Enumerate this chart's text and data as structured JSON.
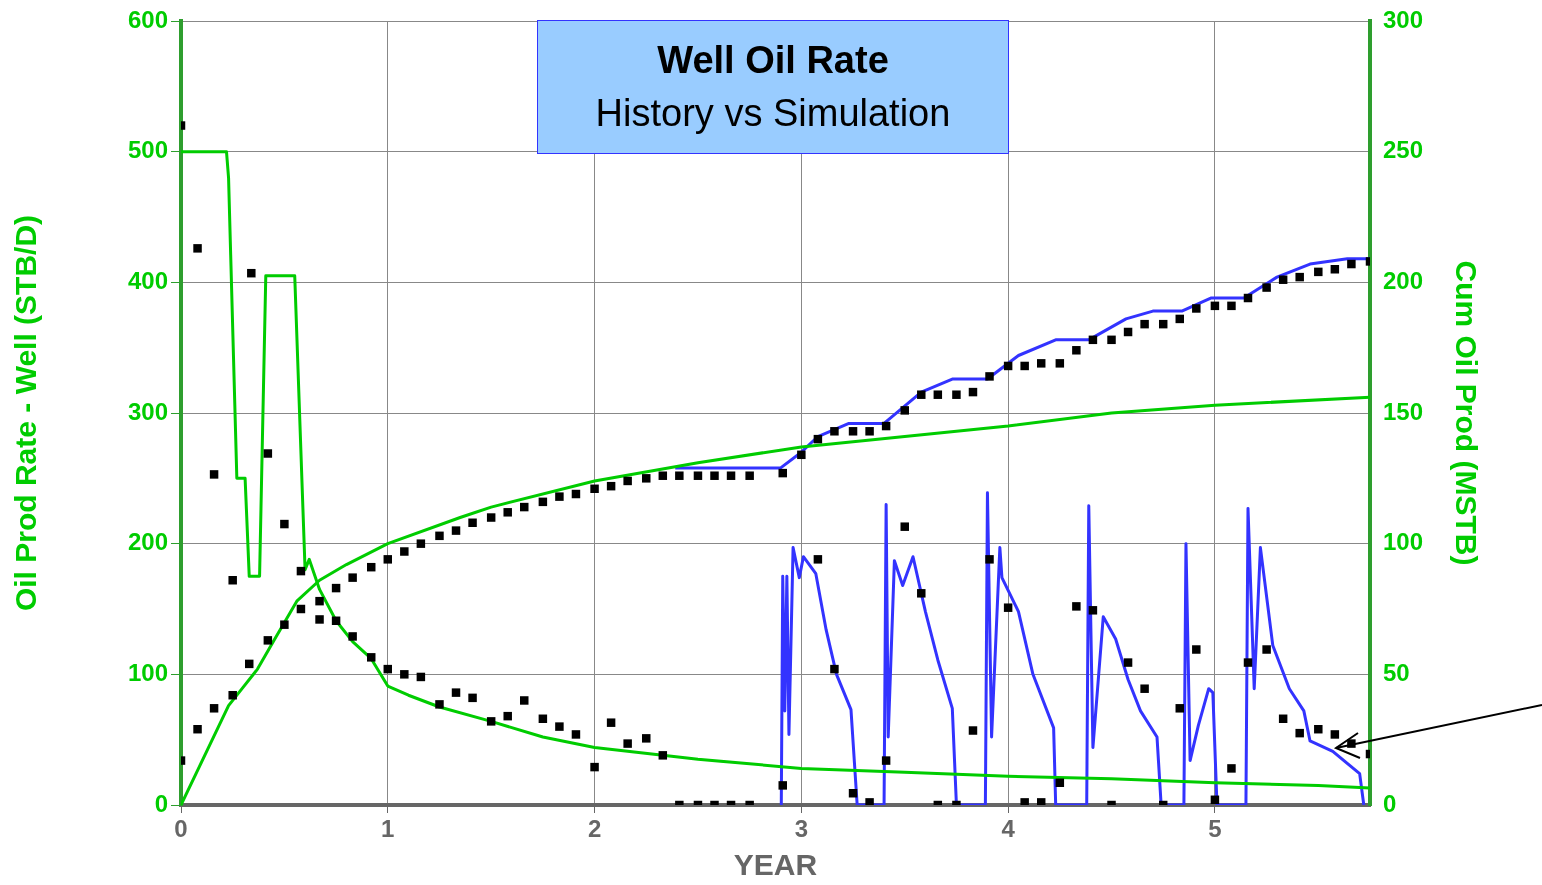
{
  "chart_data": {
    "type": "line",
    "title": "Well Oil Rate",
    "subtitle": "History vs Simulation",
    "xlabel": "YEAR",
    "ylabel": "Oil Prod Rate - Well (STB/D)",
    "y2label": "Cum Oil Prod (MSTB)",
    "xlim": [
      0,
      5.75
    ],
    "xticks": [
      0,
      1,
      2,
      3,
      4,
      5
    ],
    "ylim": [
      0,
      600
    ],
    "yticks": [
      0,
      100,
      200,
      300,
      400,
      500,
      600
    ],
    "y2lim": [
      0,
      300
    ],
    "y2ticks": [
      0,
      50,
      100,
      150,
      200,
      250,
      300
    ],
    "grid": true,
    "legend": false,
    "series": [
      {
        "type": "line",
        "color": "#00cc00",
        "marker": "none",
        "x": [
          0,
          0.22,
          0.23,
          0.27,
          0.31,
          0.33,
          0.38,
          0.41,
          0.55,
          0.6,
          0.62,
          0.67,
          0.75,
          0.83,
          0.92,
          1.0,
          1.1,
          1.25,
          1.5,
          1.75,
          2.0,
          2.33,
          2.5,
          3.0,
          3.5,
          4.0,
          4.5,
          5.0,
          5.5,
          5.75
        ],
        "values": [
          500,
          500,
          480,
          250,
          250,
          175,
          175,
          405,
          405,
          180,
          188,
          165,
          141,
          125,
          112,
          91,
          84,
          75,
          64,
          52,
          44,
          38,
          35,
          28,
          25,
          22,
          20,
          17,
          15,
          13
        ]
      },
      {
        "type": "line",
        "axis": "y2",
        "color": "#00cc00",
        "marker": "none",
        "x": [
          0,
          0.23,
          0.3,
          0.37,
          0.45,
          0.56,
          0.67,
          0.8,
          1.0,
          1.35,
          1.5,
          2.0,
          2.5,
          3.0,
          3.5,
          4.0,
          4.5,
          5.0,
          5.75
        ],
        "values": [
          0,
          38,
          45,
          52,
          63,
          78,
          86,
          92,
          100,
          110,
          114,
          124,
          131,
          137,
          141,
          145,
          150,
          153,
          156
        ]
      },
      {
        "type": "line",
        "axis": "y2",
        "color": "#3333ff",
        "marker": "none",
        "x": [
          2.39,
          2.9,
          3.0,
          3.08,
          3.23,
          3.4,
          3.58,
          3.73,
          3.9,
          4.05,
          4.23,
          4.39,
          4.57,
          4.7,
          4.84,
          4.98,
          5.14,
          5.3,
          5.46,
          5.64,
          5.75
        ],
        "values": [
          129,
          129,
          135,
          141,
          146,
          146,
          158,
          163,
          163,
          172,
          178,
          178,
          186,
          189,
          189,
          194,
          194,
          202,
          207,
          209,
          209
        ]
      },
      {
        "type": "line",
        "color": "#3333ff",
        "marker": "none",
        "x": [
          2.903,
          2.91,
          2.92,
          2.93,
          2.94,
          2.96,
          2.99,
          3.01,
          3.07,
          3.12,
          3.17,
          3.24,
          3.27,
          3.4,
          3.41,
          3.42,
          3.45,
          3.49,
          3.54,
          3.6,
          3.66,
          3.73,
          3.75,
          3.89,
          3.9,
          3.92,
          3.96,
          3.97,
          4.05,
          4.12,
          4.22,
          4.23,
          4.38,
          4.39,
          4.41,
          4.46,
          4.52,
          4.58,
          4.64,
          4.72,
          4.74,
          4.85,
          4.86,
          4.88,
          4.92,
          4.97,
          4.99,
          5.01,
          5.15,
          5.16,
          5.19,
          5.22,
          5.28,
          5.36,
          5.43,
          5.46,
          5.57,
          5.7,
          5.72
        ],
        "values": [
          0,
          175,
          72,
          175,
          54,
          197,
          174,
          190,
          177,
          134,
          100,
          73,
          0,
          0,
          230,
          52,
          187,
          168,
          190,
          148,
          111,
          74,
          0,
          0,
          239,
          52,
          197,
          174,
          148,
          100,
          59,
          0,
          0,
          229,
          44,
          144,
          127,
          96,
          72,
          52,
          0,
          0,
          200,
          34,
          61,
          89,
          86,
          0,
          0,
          227,
          89,
          197,
          122,
          89,
          72,
          49,
          41,
          24,
          0
        ]
      },
      {
        "type": "scatter",
        "color": "#000000",
        "marker": "square",
        "x": [
          0,
          0.08,
          0.16,
          0.25,
          0.34,
          0.42,
          0.5,
          0.58,
          0.67,
          0.75,
          0.83,
          0.92,
          1.0,
          1.08,
          1.16,
          1.25,
          1.33,
          1.41,
          1.5,
          1.58,
          1.66,
          1.75,
          1.83,
          1.91,
          2.0,
          2.08,
          2.16,
          2.25,
          2.33,
          2.41,
          2.5,
          2.58,
          2.66,
          2.75,
          2.91,
          3.08,
          3.16,
          3.25,
          3.33,
          3.41,
          3.5,
          3.58,
          3.66,
          3.75,
          3.83,
          3.91,
          4.0,
          4.08,
          4.16,
          4.25,
          4.33,
          4.41,
          4.5,
          4.58,
          4.66,
          4.75,
          4.83,
          4.91,
          5.0,
          5.08,
          5.16,
          5.25,
          5.33,
          5.41,
          5.5,
          5.58,
          5.66,
          5.75
        ],
        "values": [
          520,
          426,
          253,
          172,
          407,
          269,
          215,
          179,
          142,
          141,
          129,
          113,
          104,
          100,
          98,
          77,
          86,
          82,
          64,
          68,
          80,
          66,
          60,
          54,
          29,
          63,
          47,
          51,
          38,
          0,
          0,
          0,
          0,
          0,
          15,
          188,
          104,
          9,
          2,
          34,
          213,
          162,
          0,
          0,
          57,
          188,
          151,
          2,
          2,
          17,
          152,
          149,
          0,
          109,
          89,
          0,
          74,
          119,
          4,
          28,
          109,
          119,
          66,
          55,
          58,
          54,
          47,
          39
        ]
      },
      {
        "type": "scatter",
        "axis": "y2",
        "color": "#000000",
        "marker": "square",
        "x": [
          0,
          0.08,
          0.16,
          0.25,
          0.33,
          0.42,
          0.5,
          0.58,
          0.67,
          0.75,
          0.83,
          0.92,
          1.0,
          1.08,
          1.16,
          1.25,
          1.33,
          1.41,
          1.5,
          1.58,
          1.66,
          1.75,
          1.83,
          1.91,
          2.0,
          2.08,
          2.16,
          2.25,
          2.33,
          2.41,
          2.5,
          2.58,
          2.66,
          2.75,
          2.91,
          3.0,
          3.08,
          3.16,
          3.25,
          3.33,
          3.41,
          3.5,
          3.58,
          3.66,
          3.75,
          3.83,
          3.91,
          4.0,
          4.08,
          4.16,
          4.25,
          4.33,
          4.41,
          4.5,
          4.58,
          4.66,
          4.75,
          4.83,
          4.91,
          5.0,
          5.08,
          5.16,
          5.25,
          5.33,
          5.41,
          5.5,
          5.58,
          5.66,
          5.75
        ],
        "values": [
          17,
          29,
          37,
          42,
          54,
          63,
          69,
          75,
          78,
          83,
          87,
          91,
          94,
          97,
          100,
          103,
          105,
          108,
          110,
          112,
          114,
          116,
          118,
          119,
          121,
          122,
          124,
          125,
          126,
          126,
          126,
          126,
          126,
          126,
          127,
          134,
          140,
          143,
          143,
          143,
          145,
          151,
          157,
          157,
          157,
          158,
          164,
          168,
          168,
          169,
          169,
          174,
          178,
          178,
          181,
          184,
          184,
          186,
          190,
          191,
          191,
          194,
          198,
          201,
          202,
          204,
          205,
          207,
          208
        ]
      }
    ]
  }
}
